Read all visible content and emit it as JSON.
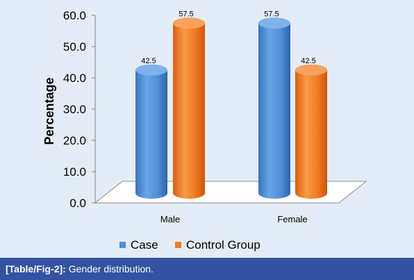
{
  "chart_data": {
    "type": "bar",
    "style": "3d-cylinder",
    "categories": [
      "Male",
      "Female"
    ],
    "series": [
      {
        "name": "Case",
        "values": [
          42.5,
          57.5
        ],
        "color": "#4f8fd8"
      },
      {
        "name": "Control Group",
        "values": [
          57.5,
          42.5
        ],
        "color": "#f07a22"
      }
    ],
    "ylabel": "Percentage",
    "xlabel": "",
    "ylim": [
      0,
      60
    ],
    "yticks": [
      "0.0",
      "10.0",
      "20.0",
      "30.0",
      "40.0",
      "50.0",
      "60.0"
    ],
    "data_labels": [
      [
        "42.5",
        "57.5"
      ],
      [
        "57.5",
        "42.5"
      ]
    ],
    "legend_position": "bottom",
    "grid": false
  },
  "caption": {
    "label": "[Table/Fig-2]:",
    "text": " Gender distribution."
  },
  "colors": {
    "panel_background": "#e4ecf7",
    "caption_background": "#3353a2",
    "caption_text": "#ffffff"
  }
}
